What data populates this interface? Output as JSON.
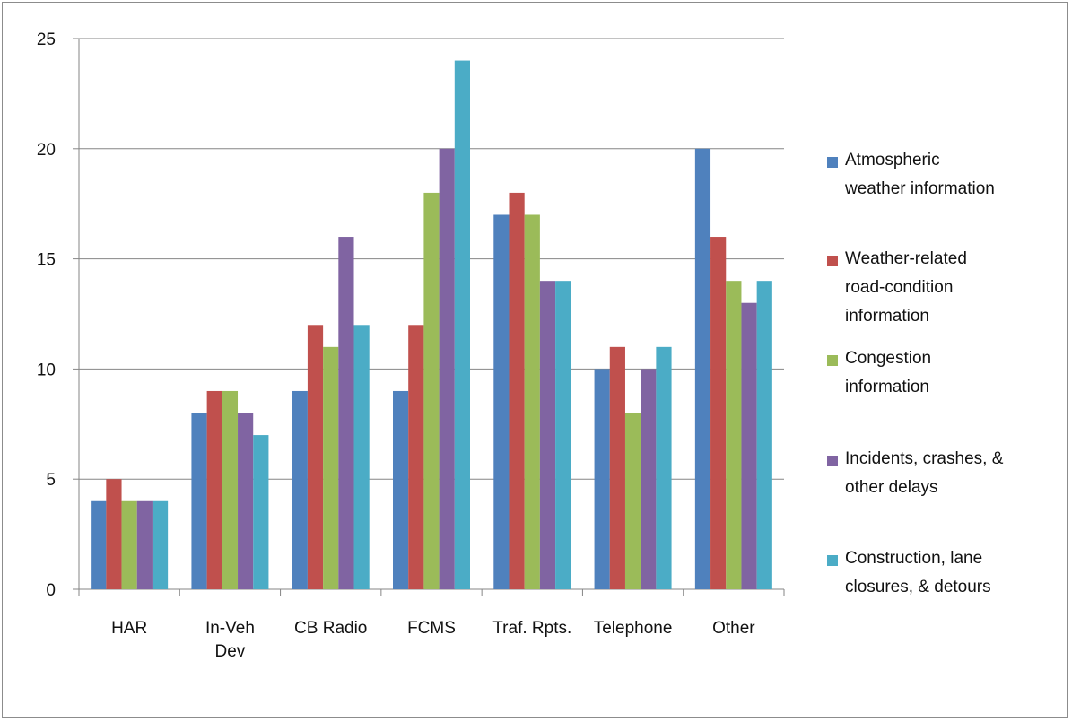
{
  "chart_data": {
    "type": "bar",
    "categories": [
      [
        "HAR"
      ],
      [
        "In-Veh",
        "Dev"
      ],
      [
        "CB Radio"
      ],
      [
        "FCMS"
      ],
      [
        "Traf. Rpts."
      ],
      [
        "Telephone"
      ],
      [
        "Other"
      ]
    ],
    "series": [
      {
        "name": [
          "Atmospheric",
          "weather information"
        ],
        "color": "#4f81bd",
        "values": [
          4,
          8,
          9,
          9,
          17,
          10,
          20
        ]
      },
      {
        "name": [
          "Weather-related",
          "road-condition",
          "information"
        ],
        "color": "#c0504d",
        "values": [
          5,
          9,
          12,
          12,
          18,
          11,
          16
        ]
      },
      {
        "name": [
          "Congestion",
          "information"
        ],
        "color": "#9bbb59",
        "values": [
          4,
          9,
          11,
          18,
          17,
          8,
          14
        ]
      },
      {
        "name": [
          "Incidents, crashes, &",
          "other delays"
        ],
        "color": "#8064a2",
        "values": [
          4,
          8,
          16,
          20,
          14,
          10,
          13
        ]
      },
      {
        "name": [
          "Construction, lane",
          "closures, & detours"
        ],
        "color": "#4bacc6",
        "values": [
          4,
          7,
          12,
          24,
          14,
          11,
          14
        ]
      }
    ],
    "ylim": [
      0,
      25
    ],
    "yticks": [
      "0",
      "5",
      "10",
      "15",
      "20",
      "25"
    ],
    "grid": true,
    "legend": "right"
  }
}
